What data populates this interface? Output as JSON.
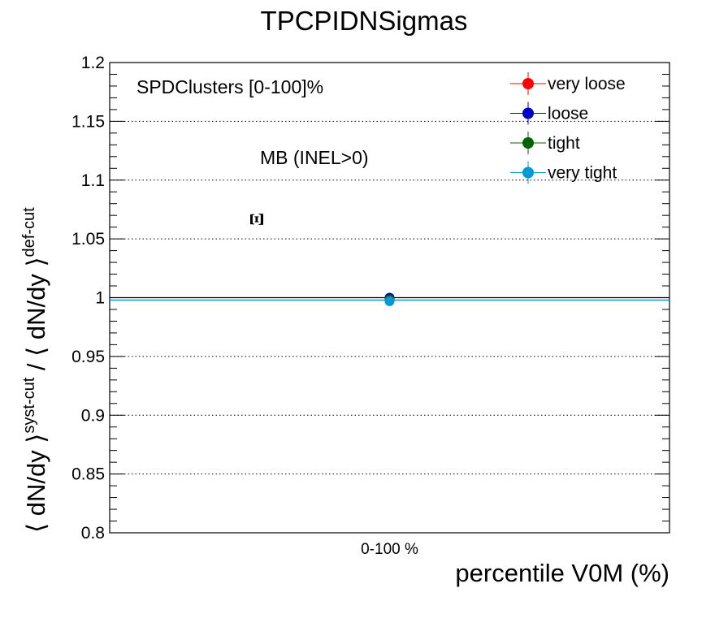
{
  "chart_data": {
    "type": "scatter",
    "title": "TPCPIDNSigmas",
    "xlabel": "percentile V0M (%)",
    "ylabel": {
      "part1": "⟨ dN/dy ⟩",
      "sup1": "syst-cut",
      "sep": " / ",
      "part2": "⟨ dN/dy ⟩",
      "sup2": "def-cut"
    },
    "categories": [
      "0-100 %"
    ],
    "ylim": [
      0.8,
      1.2
    ],
    "yticks": [
      "0.8",
      "0.85",
      "0.9",
      "0.95",
      "1",
      "1.05",
      "1.1",
      "1.15",
      "1.2"
    ],
    "grid": "horizontal dotted",
    "legend_position": "top-right",
    "annotations": {
      "multiplicity": "SPDClusters [0-100]%",
      "event_class": "MB (INEL>0)",
      "particle": "Ξ"
    },
    "reference_line": 1.0,
    "series": [
      {
        "name": "very loose",
        "color": "#ff0000",
        "values": [
          0.9995
        ]
      },
      {
        "name": "loose",
        "color": "#0000c8",
        "values": [
          1.0
        ]
      },
      {
        "name": "tight",
        "color": "#006400",
        "values": [
          0.9985
        ]
      },
      {
        "name": "very tight",
        "color": "#0099d6",
        "values": [
          0.997
        ]
      }
    ]
  }
}
